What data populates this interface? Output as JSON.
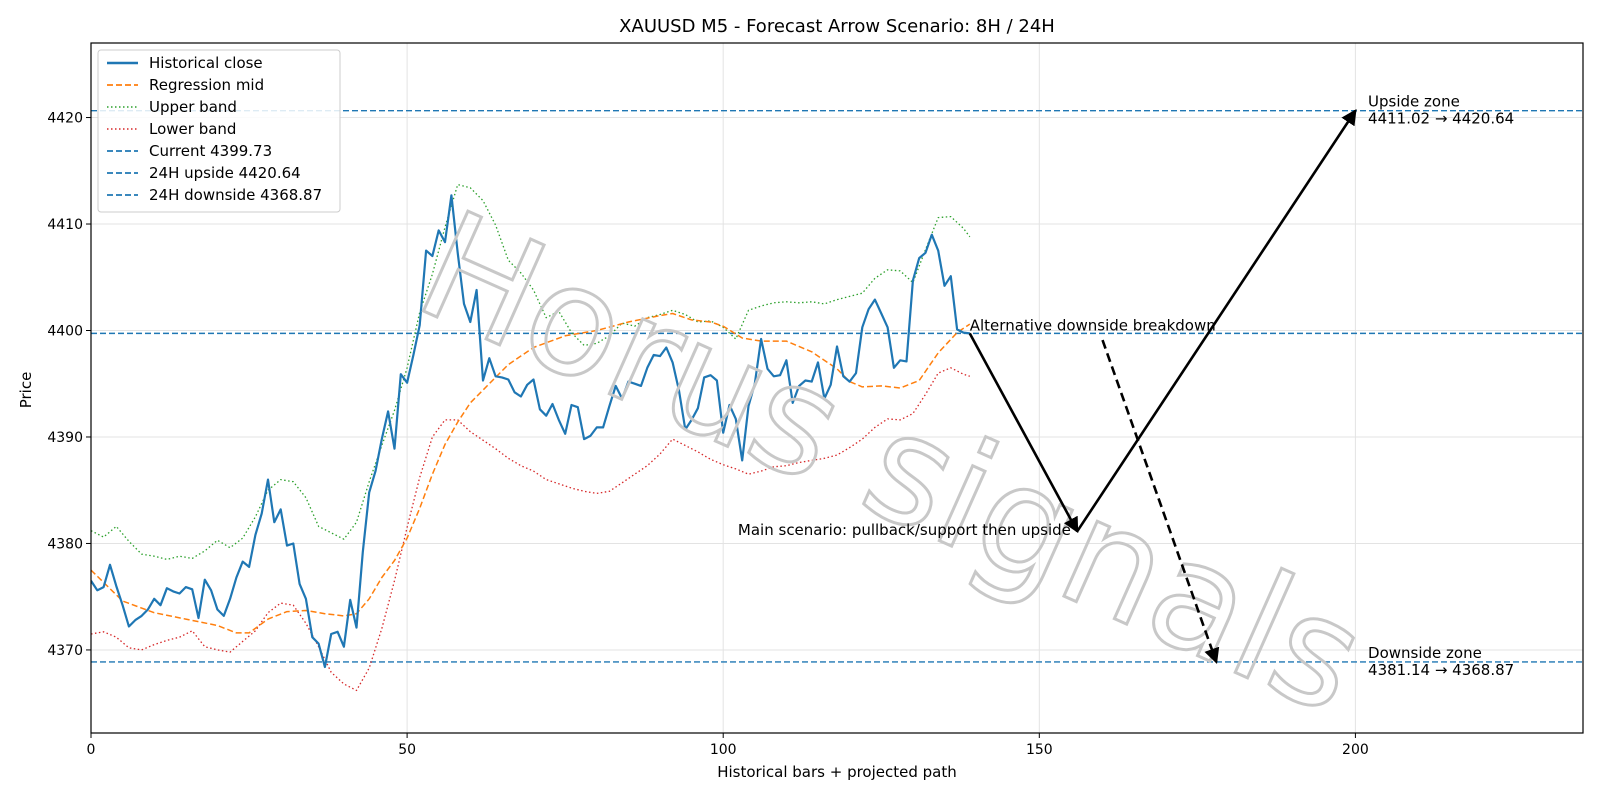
{
  "chart_data": {
    "type": "line",
    "title": "XAUUSD M5 - Forecast Arrow Scenario: 8H / 24H",
    "xlabel": "Historical bars + projected path",
    "ylabel": "Price",
    "xlim": [
      0,
      236
    ],
    "ylim": [
      4362.2,
      4427.0
    ],
    "xticks": [
      0,
      50,
      100,
      150,
      200
    ],
    "yticks": [
      4370,
      4380,
      4390,
      4400,
      4410,
      4420
    ],
    "grid": true,
    "legend_position": "top-left",
    "watermark": "Horus signals",
    "colors": {
      "historical": "#1f77b4",
      "regression": "#ff7f0e",
      "upper": "#2ca02c",
      "lower": "#d62728",
      "hline": "#1f77b4",
      "arrow": "#000000"
    },
    "series": [
      {
        "name": "Historical close",
        "style": "solid",
        "x": [
          0,
          1,
          2,
          3,
          4,
          5,
          6,
          7,
          8,
          9,
          10,
          11,
          12,
          13,
          14,
          15,
          16,
          17,
          18,
          19,
          20,
          21,
          22,
          23,
          24,
          25,
          26,
          27,
          28,
          29,
          30,
          31,
          32,
          33,
          34,
          35,
          36,
          37,
          38,
          39,
          40,
          41,
          42,
          43,
          44,
          45,
          46,
          47,
          48,
          49,
          50,
          51,
          52,
          53,
          54,
          55,
          56,
          57,
          58,
          59,
          60,
          61,
          62,
          63,
          64,
          65,
          66,
          67,
          68,
          69,
          70,
          71,
          72,
          73,
          74,
          75,
          76,
          77,
          78,
          79,
          80,
          81,
          82,
          83,
          84,
          85,
          86,
          87,
          88,
          89,
          90,
          91,
          92,
          93,
          94,
          95,
          96,
          97,
          98,
          99,
          100,
          101,
          102,
          103,
          104,
          105,
          106,
          107,
          108,
          109,
          110,
          111,
          112,
          113,
          114,
          115,
          116,
          117,
          118,
          119,
          120,
          121,
          122,
          123,
          124,
          125,
          126,
          127,
          128,
          129,
          130,
          131,
          132,
          133,
          134,
          135,
          136,
          137,
          138,
          139
        ],
        "values": [
          4376.5,
          4375.6,
          4375.9,
          4378.0,
          4376.0,
          4374.2,
          4372.2,
          4372.8,
          4373.2,
          4373.8,
          4374.8,
          4374.2,
          4375.8,
          4375.5,
          4375.3,
          4375.9,
          4375.7,
          4373.0,
          4376.6,
          4375.6,
          4373.8,
          4373.2,
          4374.8,
          4376.8,
          4378.3,
          4377.8,
          4380.8,
          4382.8,
          4386.0,
          4382.0,
          4383.2,
          4379.8,
          4380.0,
          4376.2,
          4374.8,
          4371.2,
          4370.6,
          4368.4,
          4371.5,
          4371.7,
          4370.3,
          4374.7,
          4372.1,
          4379.2,
          4384.8,
          4386.8,
          4389.8,
          4392.4,
          4388.9,
          4395.9,
          4395.1,
          4397.7,
          4400.5,
          4407.5,
          4407.0,
          4409.4,
          4408.3,
          4412.7,
          4407.3,
          4402.5,
          4400.8,
          4403.8,
          4395.3,
          4397.4,
          4395.7,
          4395.6,
          4395.4,
          4394.2,
          4393.8,
          4394.9,
          4395.4,
          4392.6,
          4392.0,
          4393.1,
          4391.6,
          4390.3,
          4393.0,
          4392.8,
          4389.8,
          4390.1,
          4390.9,
          4390.9,
          4392.9,
          4394.8,
          4393.6,
          4395.2,
          4395.0,
          4394.8,
          4396.5,
          4397.7,
          4397.6,
          4398.4,
          4397.0,
          4394.4,
          4390.7,
          4391.6,
          4392.7,
          4395.6,
          4395.8,
          4395.3,
          4390.4,
          4393.0,
          4391.7,
          4387.8,
          4392.9,
          4395.0,
          4399.2,
          4396.4,
          4395.7,
          4395.8,
          4397.2,
          4393.2,
          4394.8,
          4395.3,
          4395.2,
          4397.0,
          4393.6,
          4394.9,
          4398.5,
          4395.7,
          4395.2,
          4396.0,
          4400.3,
          4402.0,
          4402.9,
          4401.6,
          4400.3,
          4396.5,
          4397.2,
          4397.1,
          4404.7,
          4406.8,
          4407.3,
          4409.0,
          4407.5,
          4404.2,
          4405.1,
          4400.1,
          4399.8,
          4399.73
        ]
      },
      {
        "name": "Regression mid",
        "style": "dashed",
        "x": [
          0,
          5,
          10,
          15,
          20,
          23,
          25,
          28,
          31,
          34,
          37,
          40,
          42,
          44,
          46,
          48,
          50,
          52,
          54,
          56,
          58,
          60,
          63,
          66,
          70,
          75,
          80,
          85,
          90,
          92,
          95,
          98,
          100,
          103,
          106,
          110,
          114,
          118,
          120,
          122,
          125,
          128,
          131,
          134,
          137,
          139
        ],
        "values": [
          4377.5,
          4374.6,
          4373.5,
          4372.9,
          4372.3,
          4371.6,
          4371.6,
          4372.9,
          4373.6,
          4373.7,
          4373.4,
          4373.2,
          4373.4,
          4374.8,
          4376.8,
          4378.4,
          4380.5,
          4383.3,
          4386.5,
          4389.3,
          4391.4,
          4393.2,
          4395.0,
          4396.8,
          4398.4,
          4399.5,
          4400.0,
          4400.8,
          4401.4,
          4401.6,
          4401.0,
          4400.8,
          4400.4,
          4399.3,
          4399.0,
          4399.0,
          4398.0,
          4396.4,
          4395.2,
          4394.7,
          4394.8,
          4394.6,
          4395.3,
          4397.9,
          4399.8,
          4400.6
        ]
      },
      {
        "name": "Upper band",
        "style": "dotted",
        "x": [
          0,
          2,
          4,
          6,
          8,
          10,
          12,
          14,
          16,
          18,
          20,
          22,
          24,
          26,
          28,
          30,
          32,
          34,
          36,
          38,
          40,
          42,
          44,
          46,
          48,
          50,
          52,
          54,
          56,
          58,
          60,
          62,
          64,
          66,
          68,
          70,
          72,
          74,
          76,
          78,
          80,
          82,
          84,
          86,
          88,
          90,
          92,
          94,
          96,
          98,
          100,
          102,
          104,
          106,
          108,
          110,
          112,
          114,
          116,
          118,
          120,
          122,
          124,
          126,
          128,
          130,
          132,
          134,
          136,
          138,
          139
        ],
        "values": [
          4381.2,
          4380.6,
          4381.6,
          4380.2,
          4379.0,
          4378.8,
          4378.5,
          4378.8,
          4378.6,
          4379.3,
          4380.3,
          4379.6,
          4380.5,
          4382.5,
          4385.0,
          4386.0,
          4385.8,
          4384.3,
          4381.6,
          4381.0,
          4380.4,
          4382.0,
          4385.8,
          4389.2,
          4392.5,
          4396.5,
          4401.7,
          4405.3,
          4409.7,
          4413.7,
          4413.4,
          4412.2,
          4409.9,
          4406.6,
          4405.4,
          4403.8,
          4401.2,
          4401.8,
          4399.8,
          4398.6,
          4398.8,
          4399.5,
          4400.7,
          4400.4,
          4401.2,
          4401.5,
          4401.9,
          4401.5,
          4400.8,
          4400.9,
          4400.3,
          4399.2,
          4401.9,
          4402.3,
          4402.6,
          4402.7,
          4402.6,
          4402.7,
          4402.5,
          4402.9,
          4403.2,
          4403.5,
          4404.9,
          4405.7,
          4405.6,
          4404.5,
          4407.6,
          4410.6,
          4410.7,
          4409.6,
          4408.8
        ]
      },
      {
        "name": "Lower band",
        "style": "dotted",
        "x": [
          0,
          2,
          4,
          6,
          8,
          10,
          12,
          14,
          16,
          18,
          20,
          22,
          24,
          26,
          28,
          30,
          32,
          34,
          36,
          38,
          40,
          42,
          44,
          46,
          48,
          50,
          52,
          54,
          56,
          58,
          60,
          62,
          64,
          66,
          68,
          70,
          72,
          74,
          76,
          78,
          80,
          82,
          84,
          86,
          88,
          90,
          92,
          94,
          96,
          98,
          100,
          102,
          104,
          106,
          108,
          110,
          112,
          114,
          116,
          118,
          120,
          122,
          124,
          126,
          128,
          130,
          132,
          134,
          136,
          138,
          139
        ],
        "values": [
          4371.5,
          4371.7,
          4371.2,
          4370.2,
          4370.0,
          4370.5,
          4370.9,
          4371.2,
          4371.8,
          4370.3,
          4370.0,
          4369.8,
          4370.8,
          4371.8,
          4373.5,
          4374.4,
          4374.2,
          4372.5,
          4370.3,
          4367.9,
          4366.8,
          4366.2,
          4368.3,
          4372.0,
          4376.5,
          4381.5,
          4386.2,
          4390.0,
          4391.6,
          4391.6,
          4390.5,
          4389.7,
          4388.9,
          4388.0,
          4387.3,
          4386.8,
          4386.0,
          4385.6,
          4385.2,
          4384.9,
          4384.7,
          4384.9,
          4385.7,
          4386.5,
          4387.3,
          4388.4,
          4389.8,
          4389.2,
          4388.6,
          4387.9,
          4387.4,
          4387.0,
          4386.5,
          4386.8,
          4387.2,
          4387.3,
          4387.6,
          4387.8,
          4388.0,
          4388.3,
          4389.0,
          4389.8,
          4390.9,
          4391.7,
          4391.6,
          4392.2,
          4394.0,
          4396.0,
          4396.5,
          4395.9,
          4395.7
        ]
      }
    ],
    "hlines": [
      {
        "name": "Current 4399.73",
        "y": 4399.73
      },
      {
        "name": "24H upside 4420.64",
        "y": 4420.64
      },
      {
        "name": "24H downside 4368.87",
        "y": 4368.87
      }
    ],
    "arrows": [
      {
        "id": "main-down",
        "style": "solid",
        "from": [
          139,
          4399.73
        ],
        "to": [
          156,
          4381.14
        ]
      },
      {
        "id": "main-up",
        "style": "solid",
        "from": [
          156,
          4381.14
        ],
        "to": [
          200,
          4420.64
        ]
      },
      {
        "id": "alt-down",
        "style": "dashed",
        "from": [
          160,
          4399.1
        ],
        "to": [
          178,
          4368.87
        ]
      }
    ],
    "annotations": [
      {
        "id": "alt-label",
        "text": "Alternative downside breakdown"
      },
      {
        "id": "main-label",
        "text": "Main scenario: pullback/support then upside"
      },
      {
        "id": "upside-zone",
        "lines": [
          "Upside zone",
          "4411.02 → 4420.64"
        ]
      },
      {
        "id": "downside-zone",
        "lines": [
          "Downside zone",
          "4381.14 → 4368.87"
        ]
      }
    ]
  }
}
